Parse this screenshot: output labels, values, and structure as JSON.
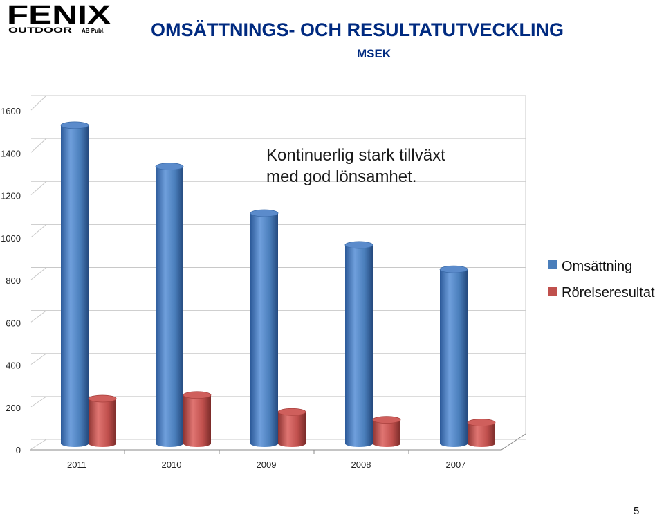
{
  "logo": {
    "brand": "FENIX",
    "tagline": "OUTDOOR",
    "suffix": "AB Publ."
  },
  "header": {
    "title": "OMSÄTTNINGS- OCH RESULTATUTVECKLING",
    "subtitle": "MSEK"
  },
  "annotation": [
    "Kontinuerlig stark tillväxt",
    "med god lönsamhet."
  ],
  "page_number": "5",
  "colors": {
    "series1": "#4a7ebb",
    "series2": "#c0504d",
    "grid": "#c8c8c8"
  },
  "chart_data": {
    "type": "bar",
    "categories": [
      "2011",
      "2010",
      "2009",
      "2008",
      "2007"
    ],
    "series": [
      {
        "name": "Omsättning",
        "values": [
          1535,
          1340,
          1120,
          970,
          855
        ]
      },
      {
        "name": "Rörelseresultat",
        "values": [
          245,
          262,
          182,
          145,
          132
        ]
      }
    ],
    "ylim": [
      0,
      1600
    ],
    "yticks": [
      "0",
      "200",
      "400",
      "600",
      "800",
      "1000",
      "1200",
      "1400",
      "1600"
    ],
    "grid": true,
    "legend": "right"
  }
}
